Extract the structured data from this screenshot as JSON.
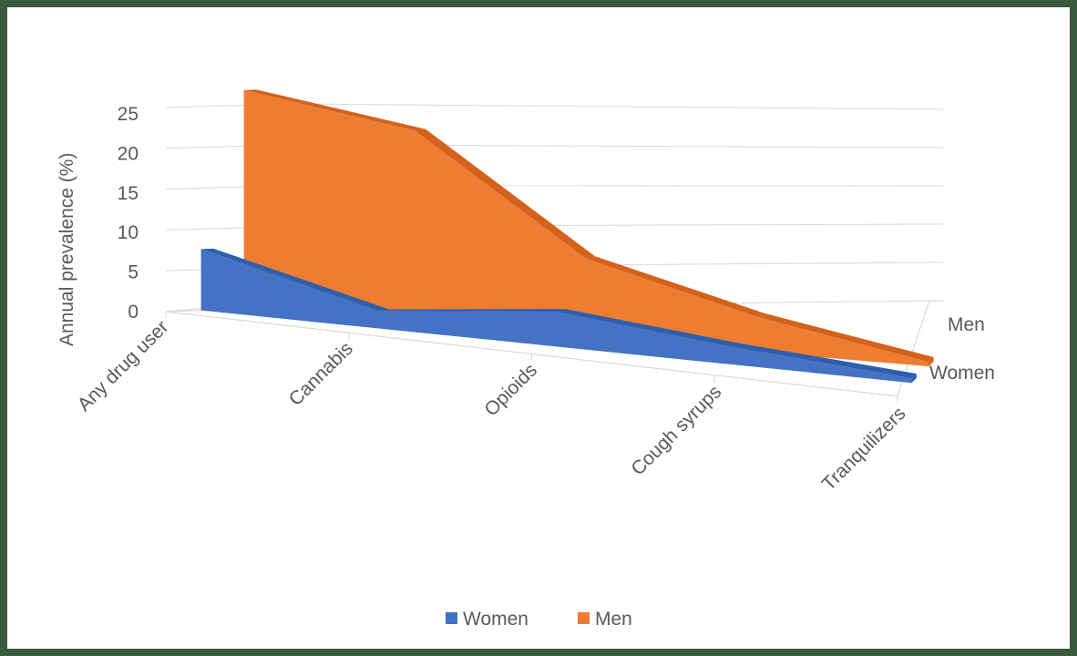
{
  "chart_data": {
    "type": "area",
    "variant": "3d-area",
    "categories": [
      "Any drug user",
      "Cannabis",
      "Opioids",
      "Cough syrups",
      "Tranquilizers"
    ],
    "series": [
      {
        "name": "Women",
        "values": [
          7,
          2,
          4,
          2,
          0.5
        ],
        "color": "#4472c4"
      },
      {
        "name": "Men",
        "values": [
          25,
          22,
          9,
          4,
          0.5
        ],
        "color": "#ed7d31"
      }
    ],
    "y_ticks": [
      "0",
      "5",
      "10",
      "15",
      "20",
      "25"
    ],
    "ylabel": "Annual prevalence (%)",
    "ylim": [
      0,
      25
    ],
    "grid": true,
    "legend": {
      "position": "bottom",
      "items": [
        "Women",
        "Men"
      ]
    },
    "depth_labels": [
      "Men",
      "Women"
    ]
  }
}
